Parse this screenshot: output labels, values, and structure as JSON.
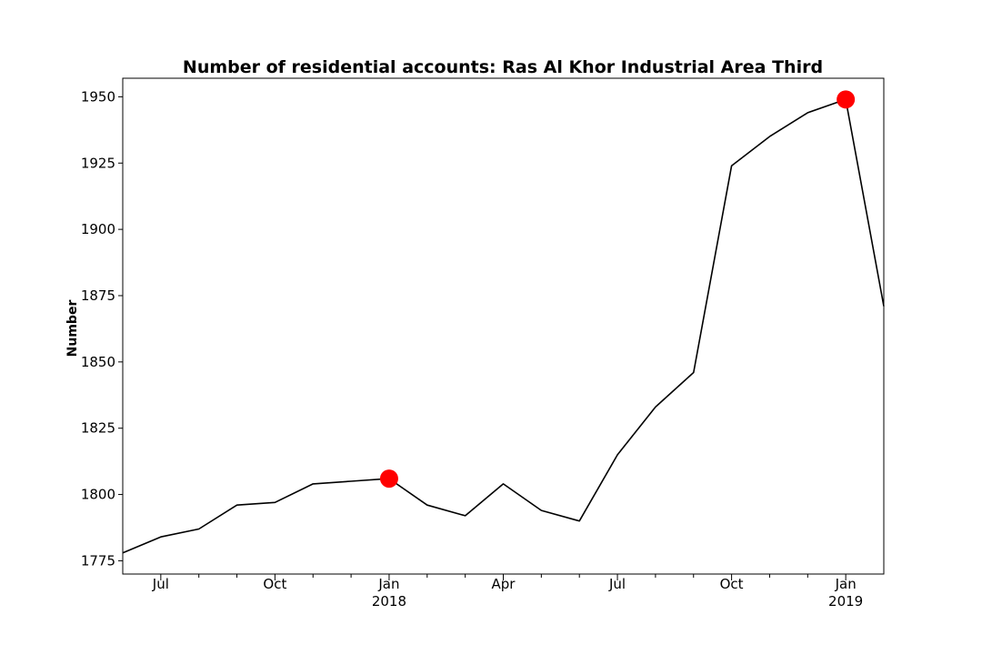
{
  "chart_data": {
    "type": "line",
    "title": "Number of residential accounts: Ras Al Khor Industrial Area Third",
    "xlabel": "",
    "ylabel": "Number",
    "x": [
      "2017-06",
      "2017-07",
      "2017-08",
      "2017-09",
      "2017-10",
      "2017-11",
      "2017-12",
      "2018-01",
      "2018-02",
      "2018-03",
      "2018-04",
      "2018-05",
      "2018-06",
      "2018-07",
      "2018-08",
      "2018-09",
      "2018-10",
      "2018-11",
      "2018-12",
      "2019-01",
      "2019-02"
    ],
    "series": [
      {
        "values": [
          1778,
          1784,
          1787,
          1796,
          1797,
          1804,
          1805,
          1806,
          1796,
          1792,
          1804,
          1794,
          1790,
          1815,
          1833,
          1846,
          1924,
          1935,
          1944,
          1949,
          1871
        ],
        "color": "#000000"
      }
    ],
    "highlights": [
      {
        "x": "2018-01",
        "y": 1806,
        "color": "#ff0000"
      },
      {
        "x": "2019-01",
        "y": 1949,
        "color": "#ff0000"
      }
    ],
    "ylim": [
      1770,
      1957
    ],
    "yticks": [
      1775,
      1800,
      1825,
      1850,
      1875,
      1900,
      1925,
      1950
    ],
    "xticks": [
      {
        "x": "2017-07",
        "label": "Jul",
        "sublabel": ""
      },
      {
        "x": "2017-10",
        "label": "Oct",
        "sublabel": ""
      },
      {
        "x": "2018-01",
        "label": "Jan",
        "sublabel": "2018"
      },
      {
        "x": "2018-04",
        "label": "Apr",
        "sublabel": ""
      },
      {
        "x": "2018-07",
        "label": "Jul",
        "sublabel": ""
      },
      {
        "x": "2018-10",
        "label": "Oct",
        "sublabel": ""
      },
      {
        "x": "2019-01",
        "label": "Jan",
        "sublabel": "2019"
      }
    ],
    "minor_xticks": [
      "2017-08",
      "2017-09",
      "2017-11",
      "2017-12",
      "2018-02",
      "2018-03",
      "2018-05",
      "2018-06",
      "2018-08",
      "2018-09",
      "2018-11",
      "2018-12"
    ],
    "grid": false,
    "legend": "none"
  }
}
